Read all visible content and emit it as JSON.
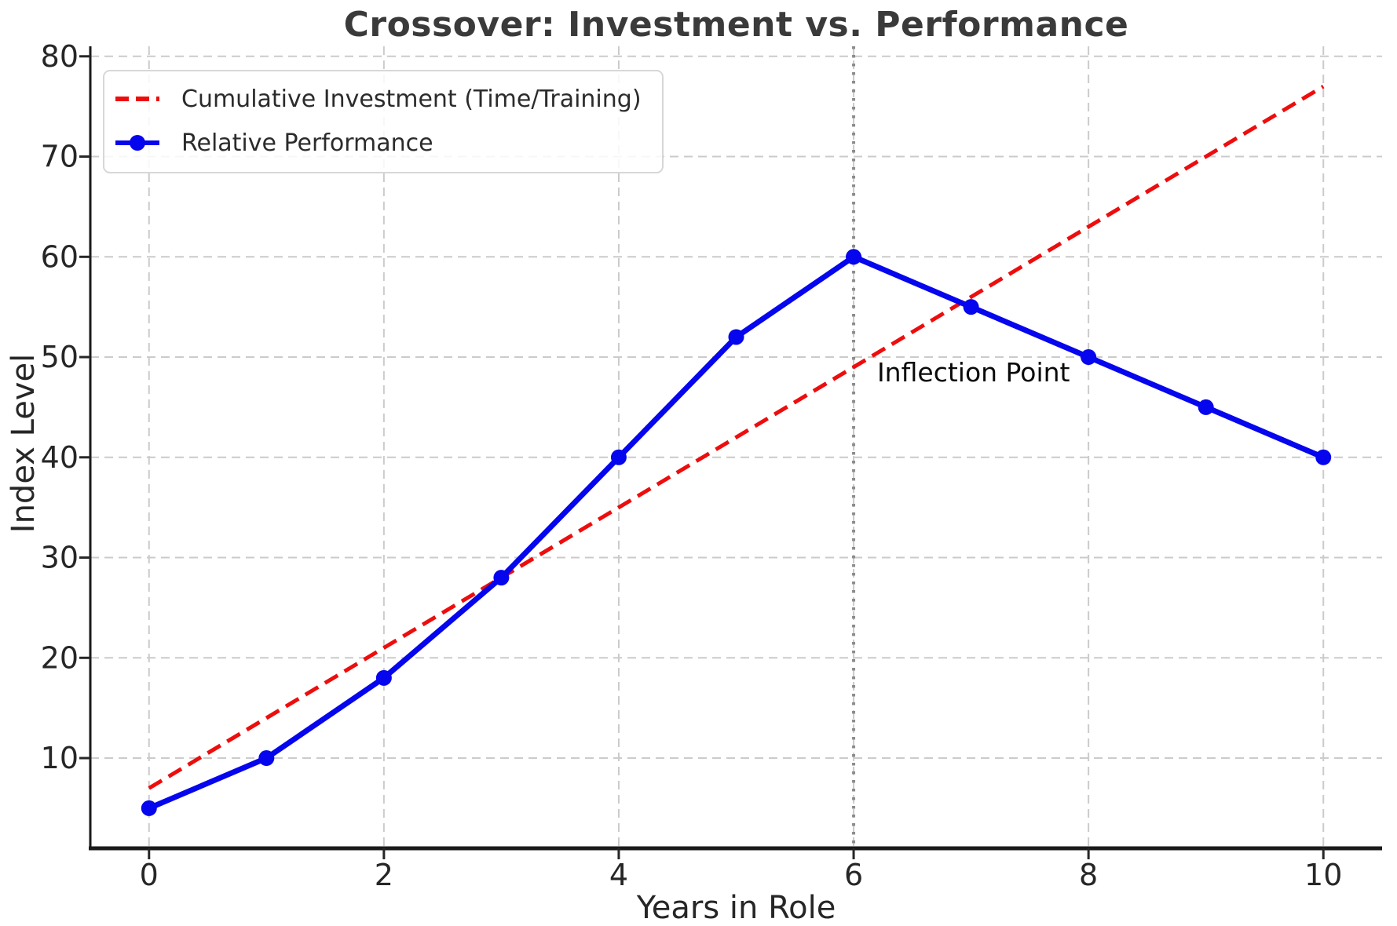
{
  "title": "Crossover: Investment vs. Performance",
  "axes": {
    "xlabel": "Years in Role",
    "ylabel": "Index Level"
  },
  "colors": {
    "investment": "#ee0d0d",
    "performance": "#0505ee",
    "grid": "#cbcbcb",
    "vline": "#8c8c8c",
    "spine": "#1a1a1a",
    "tick_text": "#262626",
    "title_text": "#3a3a3a",
    "annotation_text": "#0a0a0a"
  },
  "chart_data": {
    "type": "line",
    "title": "Crossover: Investment vs. Performance",
    "xlabel": "Years in Role",
    "ylabel": "Index Level",
    "x": [
      0,
      1,
      2,
      3,
      4,
      5,
      6,
      7,
      8,
      9,
      10
    ],
    "series": [
      {
        "name": "Cumulative Investment (Time/Training)",
        "values": [
          7,
          14,
          21,
          28,
          35,
          42,
          49,
          56,
          63,
          70,
          77
        ],
        "color": "#ee0d0d",
        "line_style": "dashed",
        "marker": "none"
      },
      {
        "name": "Relative Performance",
        "values": [
          5,
          10,
          18,
          28,
          40,
          52,
          60,
          55,
          50,
          45,
          40
        ],
        "color": "#0505ee",
        "line_style": "solid",
        "marker": "circle"
      }
    ],
    "xlim": [
      -0.5,
      10.5
    ],
    "ylim": [
      1,
      81
    ],
    "xticks": [
      0,
      2,
      4,
      6,
      8,
      10
    ],
    "yticks": [
      10,
      20,
      30,
      40,
      50,
      60,
      70,
      80
    ],
    "grid": true,
    "legend_position": "upper-left",
    "vlines": [
      {
        "x": 6,
        "style": "dotted",
        "color": "#8c8c8c"
      }
    ],
    "annotations": [
      {
        "text": "Inflection Point",
        "x": 6.2,
        "y": 48.5
      }
    ]
  }
}
